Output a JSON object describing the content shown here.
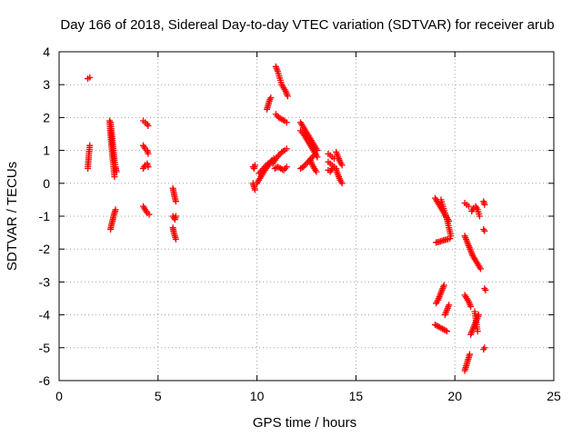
{
  "chart_data": {
    "type": "scatter",
    "title": "Day 166 of 2018, Sidereal Day-to-day VTEC variation (SDTVAR) for receiver arub",
    "xlabel": "GPS time / hours",
    "ylabel": "SDTVAR / TECUs",
    "xlim": [
      0,
      25
    ],
    "ylim": [
      -6,
      4
    ],
    "xticks": [
      0,
      5,
      10,
      15,
      20,
      25
    ],
    "yticks": [
      -6,
      -5,
      -4,
      -3,
      -2,
      -1,
      0,
      1,
      2,
      3,
      4
    ],
    "grid": true,
    "marker": "plus",
    "color": "#ff0000",
    "segments": [
      {
        "x": [
          1.45,
          1.55
        ],
        "y": [
          3.18,
          3.22
        ]
      },
      {
        "x": [
          1.45,
          1.5,
          1.55
        ],
        "y": [
          0.45,
          0.85,
          1.15
        ]
      },
      {
        "x": [
          2.6,
          2.65,
          2.7,
          2.75,
          2.8,
          2.85,
          2.9
        ],
        "y": [
          1.85,
          1.6,
          1.3,
          1.0,
          0.7,
          0.5,
          0.35
        ]
      },
      {
        "x": [
          2.55,
          2.6,
          2.65,
          2.7,
          2.75,
          2.8
        ],
        "y": [
          1.9,
          1.5,
          1.1,
          0.8,
          0.5,
          0.2
        ]
      },
      {
        "x": [
          2.6,
          2.65,
          2.7,
          2.75,
          2.8,
          2.85
        ],
        "y": [
          -1.4,
          -1.25,
          -1.15,
          -1.0,
          -0.9,
          -0.8
        ]
      },
      {
        "x": [
          4.25,
          4.35,
          4.45,
          4.5
        ],
        "y": [
          1.9,
          1.85,
          1.8,
          1.75
        ]
      },
      {
        "x": [
          4.25,
          4.35,
          4.45,
          4.5
        ],
        "y": [
          1.15,
          1.05,
          1.0,
          0.9
        ]
      },
      {
        "x": [
          4.25,
          4.35,
          4.45,
          4.5
        ],
        "y": [
          0.45,
          0.55,
          0.6,
          0.5
        ]
      },
      {
        "x": [
          4.25,
          4.35,
          4.45,
          4.55
        ],
        "y": [
          -0.7,
          -0.8,
          -0.9,
          -0.95
        ]
      },
      {
        "x": [
          5.75,
          5.8,
          5.85,
          5.9
        ],
        "y": [
          -0.15,
          -0.3,
          -0.45,
          -0.55
        ]
      },
      {
        "x": [
          5.75,
          5.8,
          5.85,
          5.9
        ],
        "y": [
          -1.0,
          -1.05,
          -1.1,
          -1.0
        ]
      },
      {
        "x": [
          5.75,
          5.8,
          5.85,
          5.9
        ],
        "y": [
          -1.35,
          -1.5,
          -1.6,
          -1.7
        ]
      },
      {
        "x": [
          9.8,
          9.85,
          9.9
        ],
        "y": [
          0.5,
          0.45,
          0.55
        ]
      },
      {
        "x": [
          9.8,
          9.85,
          9.9
        ],
        "y": [
          0.0,
          -0.1,
          -0.2
        ]
      },
      {
        "x": [
          10.0,
          10.15,
          10.3,
          10.45,
          10.6,
          10.75
        ],
        "y": [
          0.0,
          0.15,
          0.3,
          0.45,
          0.55,
          0.7
        ]
      },
      {
        "x": [
          10.1,
          10.25,
          10.4,
          10.55,
          10.7,
          10.85
        ],
        "y": [
          0.3,
          0.4,
          0.5,
          0.6,
          0.65,
          0.75
        ]
      },
      {
        "x": [
          10.5,
          10.55,
          10.6,
          10.65,
          10.7
        ],
        "y": [
          2.25,
          2.35,
          2.45,
          2.55,
          2.6
        ]
      },
      {
        "x": [
          10.95,
          11.05,
          11.15,
          11.25,
          11.35,
          11.45,
          11.55
        ],
        "y": [
          3.55,
          3.4,
          3.2,
          3.0,
          2.9,
          2.8,
          2.65
        ]
      },
      {
        "x": [
          10.95,
          11.1,
          11.25,
          11.4,
          11.5
        ],
        "y": [
          2.1,
          2.0,
          1.95,
          1.9,
          1.85
        ]
      },
      {
        "x": [
          10.8,
          10.95,
          11.1,
          11.25,
          11.4,
          11.5
        ],
        "y": [
          0.6,
          0.75,
          0.85,
          0.95,
          1.0,
          1.05
        ]
      },
      {
        "x": [
          10.9,
          11.05,
          11.2,
          11.35,
          11.5
        ],
        "y": [
          0.45,
          0.5,
          0.45,
          0.4,
          0.5
        ]
      },
      {
        "x": [
          12.2,
          12.35,
          12.5,
          12.65,
          12.8,
          12.95,
          13.05
        ],
        "y": [
          1.85,
          1.7,
          1.55,
          1.4,
          1.25,
          1.1,
          1.0
        ]
      },
      {
        "x": [
          12.2,
          12.35,
          12.5,
          12.65,
          12.8,
          12.95,
          13.05
        ],
        "y": [
          1.6,
          1.5,
          1.35,
          1.2,
          1.05,
          0.9,
          0.8
        ]
      },
      {
        "x": [
          12.2,
          12.35,
          12.5,
          12.65,
          12.8,
          12.95
        ],
        "y": [
          0.45,
          0.5,
          0.6,
          0.7,
          0.8,
          0.9
        ]
      },
      {
        "x": [
          12.7,
          12.8,
          12.9,
          13.0
        ],
        "y": [
          0.7,
          0.55,
          0.45,
          0.35
        ]
      },
      {
        "x": [
          13.6,
          13.7,
          13.8,
          13.9
        ],
        "y": [
          0.9,
          0.85,
          0.8,
          0.75
        ]
      },
      {
        "x": [
          13.6,
          13.7,
          13.8,
          13.9,
          14.0
        ],
        "y": [
          0.65,
          0.6,
          0.55,
          0.5,
          0.45
        ]
      },
      {
        "x": [
          13.6,
          13.7,
          13.8,
          13.9
        ],
        "y": [
          0.4,
          0.35,
          0.45,
          0.5
        ]
      },
      {
        "x": [
          14.0,
          14.1,
          14.2,
          14.3
        ],
        "y": [
          0.95,
          0.8,
          0.65,
          0.55
        ]
      },
      {
        "x": [
          14.0,
          14.1,
          14.2,
          14.3
        ],
        "y": [
          0.4,
          0.25,
          0.1,
          0.0
        ]
      },
      {
        "x": [
          19.0,
          19.1,
          19.2,
          19.3,
          19.45,
          19.6,
          19.7
        ],
        "y": [
          -0.45,
          -0.55,
          -0.65,
          -0.75,
          -0.9,
          -1.05,
          -1.15
        ]
      },
      {
        "x": [
          19.3,
          19.4,
          19.5,
          19.6,
          19.7,
          19.8
        ],
        "y": [
          -0.5,
          -0.7,
          -0.9,
          -1.1,
          -1.35,
          -1.6
        ]
      },
      {
        "x": [
          19.05,
          19.2,
          19.35,
          19.5,
          19.65,
          19.75
        ],
        "y": [
          -1.8,
          -1.78,
          -1.75,
          -1.72,
          -1.7,
          -1.68
        ]
      },
      {
        "x": [
          19.05,
          19.15,
          19.25,
          19.35,
          19.45
        ],
        "y": [
          -3.65,
          -3.55,
          -3.4,
          -3.25,
          -3.1
        ]
      },
      {
        "x": [
          19.5,
          19.6,
          19.7
        ],
        "y": [
          -4.0,
          -3.85,
          -3.7
        ]
      },
      {
        "x": [
          19.0,
          19.15,
          19.3,
          19.45,
          19.6
        ],
        "y": [
          -4.3,
          -4.35,
          -4.4,
          -4.45,
          -4.5
        ]
      },
      {
        "x": [
          20.5,
          20.6,
          20.7
        ],
        "y": [
          -0.6,
          -0.65,
          -0.7
        ]
      },
      {
        "x": [
          20.85,
          20.95,
          21.05,
          21.15,
          21.25
        ],
        "y": [
          -0.85,
          -0.75,
          -0.7,
          -0.8,
          -1.0
        ]
      },
      {
        "x": [
          21.45,
          21.5
        ],
        "y": [
          -0.55,
          -0.65
        ]
      },
      {
        "x": [
          21.45,
          21.5
        ],
        "y": [
          -1.4,
          -1.45
        ]
      },
      {
        "x": [
          20.5,
          20.6,
          20.7,
          20.8,
          20.9,
          21.0
        ],
        "y": [
          -1.6,
          -1.75,
          -1.9,
          -2.05,
          -2.2,
          -2.3
        ]
      },
      {
        "x": [
          21.0,
          21.1,
          21.2,
          21.3
        ],
        "y": [
          -2.3,
          -2.4,
          -2.5,
          -2.6
        ]
      },
      {
        "x": [
          20.5,
          20.6,
          20.7,
          20.8
        ],
        "y": [
          -3.4,
          -3.5,
          -3.6,
          -3.75
        ]
      },
      {
        "x": [
          20.8,
          20.9,
          21.0,
          21.1,
          21.2
        ],
        "y": [
          -4.6,
          -4.45,
          -4.3,
          -4.15,
          -4.0
        ]
      },
      {
        "x": [
          21.0,
          21.05,
          21.1,
          21.15
        ],
        "y": [
          -3.9,
          -4.1,
          -4.3,
          -4.5
        ]
      },
      {
        "x": [
          21.5,
          21.55
        ],
        "y": [
          -3.2,
          -3.25
        ]
      },
      {
        "x": [
          21.45,
          21.5
        ],
        "y": [
          -5.05,
          -5.0
        ]
      },
      {
        "x": [
          20.5,
          20.55,
          20.6,
          20.65,
          20.7,
          20.75
        ],
        "y": [
          -5.7,
          -5.6,
          -5.5,
          -5.4,
          -5.3,
          -5.2
        ]
      }
    ]
  }
}
